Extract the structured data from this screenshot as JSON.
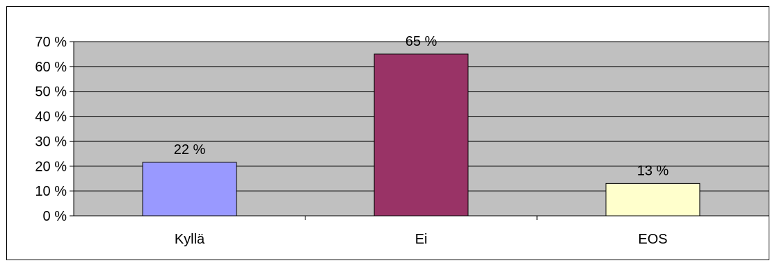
{
  "chart_data": {
    "type": "bar",
    "categories": [
      "Kyllä",
      "Ei",
      "EOS"
    ],
    "values": [
      21.5,
      65,
      13
    ],
    "data_labels": [
      "22 %",
      "65 %",
      "13 %"
    ],
    "bar_colors": [
      "#9999ff",
      "#993366",
      "#ffffcc"
    ],
    "plot_background": "#c0c0c0",
    "ylim": [
      0,
      70
    ],
    "y_ticks": [
      0,
      10,
      20,
      30,
      40,
      50,
      60,
      70
    ],
    "y_tick_labels": [
      "0 %",
      "10 %",
      "20 %",
      "30 %",
      "40 %",
      "50 %",
      "60 %",
      "70 %"
    ],
    "grid": true,
    "legend": "none",
    "title": "",
    "xlabel": "",
    "ylabel": ""
  }
}
